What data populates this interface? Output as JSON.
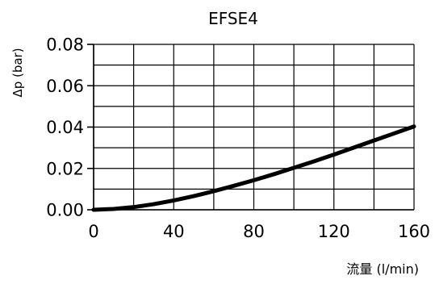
{
  "chart_data": {
    "type": "line",
    "title": "EFSE4",
    "xlabel": "流量 (l/min)",
    "ylabel": "Δp (bar)",
    "xlim": [
      0,
      160
    ],
    "ylim": [
      0,
      0.08
    ],
    "x_ticks": [
      0,
      40,
      80,
      120,
      160
    ],
    "x_tick_labels": [
      "0",
      "40",
      "80",
      "120",
      "160"
    ],
    "y_ticks": [
      0,
      0.02,
      0.04,
      0.06,
      0.08
    ],
    "y_tick_labels": [
      "0.00",
      "0.02",
      "0.04",
      "0.06",
      "0.08"
    ],
    "grid": true,
    "x_grid_step": 20,
    "y_grid_step": 0.01,
    "series": [
      {
        "x": [
          0,
          10,
          20,
          30,
          40,
          50,
          60,
          70,
          80,
          90,
          100,
          110,
          120,
          130,
          140,
          150,
          160
        ],
        "y": [
          0,
          0.0004,
          0.0013,
          0.0027,
          0.0045,
          0.0066,
          0.009,
          0.0116,
          0.0143,
          0.0172,
          0.0203,
          0.0234,
          0.0267,
          0.0301,
          0.0335,
          0.0369,
          0.0403
        ],
        "color": "#000000"
      }
    ]
  }
}
